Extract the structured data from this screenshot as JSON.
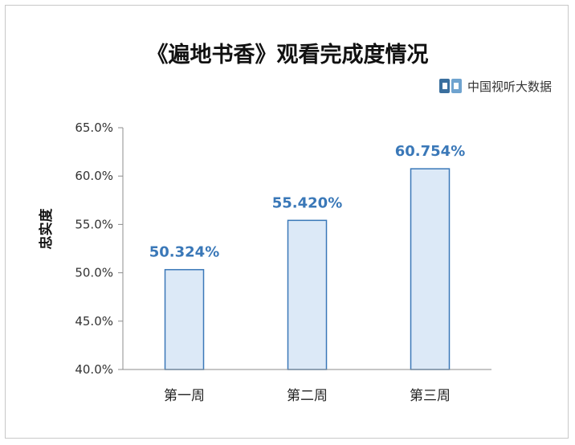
{
  "title": "《遍地书香》观看完成度情况",
  "source_logo": {
    "icon": "cvb-logo-icon",
    "text": "中国视听大数据"
  },
  "colors": {
    "bar_fill": "#dce9f7",
    "bar_stroke": "#3a78b8",
    "value_label": "#3a78b8",
    "axis": "#8c8c8c"
  },
  "chart_data": {
    "type": "bar",
    "title": "《遍地书香》观看完成度情况",
    "xlabel": "",
    "ylabel": "忠实度",
    "categories": [
      "第一周",
      "第二周",
      "第三周"
    ],
    "values": [
      50.324,
      55.42,
      60.754
    ],
    "value_labels": [
      "50.324%",
      "55.420%",
      "60.754%"
    ],
    "ylim": [
      40,
      65
    ],
    "yticks": [
      40,
      45,
      50,
      55,
      60,
      65
    ],
    "ytick_labels": [
      "40.0%",
      "45.0%",
      "50.0%",
      "55.0%",
      "60.0%",
      "65.0%"
    ],
    "grid": false,
    "legend": "none"
  }
}
